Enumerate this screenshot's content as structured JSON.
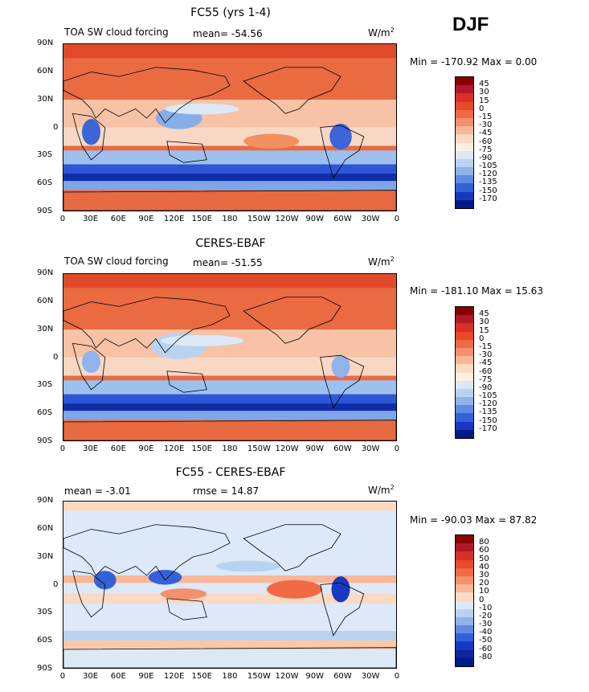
{
  "season": "DJF",
  "panels": [
    {
      "title": "FC55 (yrs 1-4)",
      "left_text": "TOA SW cloud forcing",
      "mid_text": "mean= -54.56",
      "units": "W/m",
      "units_sup": "2",
      "minmax": "Min = -170.92 Max =    0.00",
      "colorbar_labels": [
        "45",
        "30",
        "15",
        "0",
        "-15",
        "-30",
        "-45",
        "-60",
        "-75",
        "-90",
        "-105",
        "-120",
        "-135",
        "-150",
        "-170"
      ],
      "colors": [
        "#8b0000",
        "#b2182b",
        "#d73027",
        "#e84a2a",
        "#f06b45",
        "#f4906c",
        "#f8b796",
        "#fbd9c3",
        "#fdeede",
        "#dbe9f6",
        "#b8d3f0",
        "#8fb3ea",
        "#5f8be0",
        "#3461d8",
        "#1639c0",
        "#001a8a"
      ]
    },
    {
      "title": "CERES-EBAF",
      "left_text": "TOA SW cloud forcing",
      "mid_text": "mean= -51.55",
      "units": "W/m",
      "units_sup": "2",
      "minmax": "Min = -181.10 Max =   15.63",
      "colorbar_labels": [
        "45",
        "30",
        "15",
        "0",
        "-15",
        "-30",
        "-45",
        "-60",
        "-75",
        "-90",
        "-105",
        "-120",
        "-135",
        "-150",
        "-170"
      ],
      "colors": [
        "#8b0000",
        "#b2182b",
        "#d73027",
        "#e84a2a",
        "#f06b45",
        "#f4906c",
        "#f8b796",
        "#fbd9c3",
        "#fdeede",
        "#dbe9f6",
        "#b8d3f0",
        "#8fb3ea",
        "#5f8be0",
        "#3461d8",
        "#1639c0",
        "#001a8a"
      ]
    },
    {
      "title": "FC55 - CERES-EBAF",
      "left_text": "mean =  -3.01",
      "mid_text": "rmse =  14.87",
      "units": "W/m",
      "units_sup": "2",
      "minmax": "Min = -90.03 Max =  87.82",
      "colorbar_labels": [
        "80",
        "60",
        "50",
        "40",
        "30",
        "20",
        "10",
        "0",
        "-10",
        "-20",
        "-30",
        "-40",
        "-50",
        "-60",
        "-80"
      ],
      "colors": [
        "#8b0000",
        "#b2182b",
        "#d73027",
        "#e84a2a",
        "#f06b45",
        "#f4906c",
        "#f8b796",
        "#fbd9c3",
        "#dbe9f6",
        "#b8d3f0",
        "#8fb3ea",
        "#5f8be0",
        "#3461d8",
        "#1639c0",
        "#0a26a0",
        "#001a8a"
      ]
    }
  ],
  "lat_labels": [
    "90N",
    "60N",
    "30N",
    "0",
    "30S",
    "60S",
    "90S"
  ],
  "lon_labels": [
    "0",
    "30E",
    "60E",
    "90E",
    "120E",
    "150E",
    "180",
    "150W",
    "120W",
    "90W",
    "60W",
    "30W",
    "0"
  ]
}
